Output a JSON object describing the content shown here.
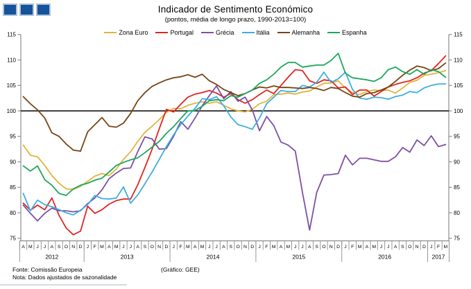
{
  "header": {
    "title": "Indicador de Sentimento Económico",
    "subtitle": "(pontos, média de longo prazo, 1990-2013=100)"
  },
  "footer": {
    "fonte": "Fonte: Comissão Europeia",
    "nota": "Nota: Dados ajustados de sazonalidade",
    "credit": "(Gráfico: GEE)"
  },
  "logo": {
    "squares": 3,
    "fill": "#15539B",
    "border": "#AEC4D8"
  },
  "chart_data": {
    "type": "line",
    "title": "Indicador de Sentimento Económico",
    "subtitle": "(pontos, média de longo prazo, 1990-2013=100)",
    "ylim": [
      75,
      115
    ],
    "ytick_step": 5,
    "baseline": 100,
    "grid": false,
    "legend_position": "top",
    "axis_color": "#8c8c8c",
    "baseline_color": "#000000",
    "x_months": [
      "A",
      "M",
      "J",
      "J",
      "A",
      "S",
      "O",
      "N",
      "D",
      "J",
      "F",
      "M",
      "A",
      "M",
      "J",
      "J",
      "A",
      "S",
      "O",
      "N",
      "D",
      "J",
      "F",
      "M",
      "A",
      "M",
      "J",
      "J",
      "A",
      "S",
      "O",
      "N",
      "D",
      "J",
      "F",
      "M",
      "A",
      "M",
      "J",
      "J",
      "A",
      "S",
      "O",
      "N",
      "D",
      "J",
      "F",
      "M",
      "A",
      "M",
      "J",
      "J",
      "A",
      "S",
      "O",
      "N",
      "D",
      "J",
      "F",
      "M"
    ],
    "years": [
      {
        "label": "2012",
        "months": 9
      },
      {
        "label": "2013",
        "months": 12
      },
      {
        "label": "2014",
        "months": 12
      },
      {
        "label": "2015",
        "months": 12
      },
      {
        "label": "2016",
        "months": 12
      },
      {
        "label": "2017",
        "months": 3
      }
    ],
    "series": [
      {
        "name": "Zona Euro",
        "color": "#E2B33C",
        "values": [
          93.3,
          91.3,
          91.0,
          89.3,
          87.3,
          85.8,
          84.7,
          84.6,
          85.2,
          86.2,
          87.2,
          87.7,
          87.3,
          88.6,
          90.5,
          92.0,
          94.0,
          95.8,
          97.0,
          98.3,
          99.7,
          100.5,
          100.4,
          101.1,
          101.5,
          101.8,
          101.5,
          101.8,
          101.1,
          100.4,
          100.0,
          99.8,
          100.3,
          101.4,
          101.9,
          103.2,
          103.3,
          103.5,
          103.3,
          103.7,
          103.9,
          104.7,
          105.4,
          105.5,
          105.9,
          104.5,
          103.6,
          103.2,
          103.8,
          104.1,
          104.0,
          104.1,
          103.5,
          104.5,
          105.6,
          106.0,
          107.0,
          107.2,
          107.5,
          107.9
        ]
      },
      {
        "name": "Portugal",
        "color": "#E0241E",
        "values": [
          81.9,
          80.5,
          81.5,
          80.6,
          82.9,
          79.5,
          77.0,
          75.7,
          76.4,
          81.3,
          79.9,
          80.6,
          81.7,
          82.4,
          82.7,
          82.7,
          85.5,
          88.9,
          92.5,
          96.5,
          100.3,
          99.8,
          101.3,
          102.7,
          103.3,
          103.6,
          104.0,
          103.5,
          102.7,
          103.4,
          102.2,
          101.5,
          102.2,
          103.2,
          104.1,
          103.4,
          105.0,
          106.6,
          108.1,
          107.9,
          105.9,
          105.4,
          106.1,
          105.9,
          104.5,
          104.7,
          103.2,
          104.1,
          104.1,
          102.9,
          103.8,
          104.7,
          105.2,
          105.6,
          105.9,
          106.5,
          107.4,
          107.9,
          109.3,
          110.8
        ]
      },
      {
        "name": "Grécia",
        "color": "#7C4FA4",
        "values": [
          81.5,
          79.9,
          78.4,
          79.9,
          80.9,
          80.4,
          80.4,
          80.2,
          80.4,
          81.8,
          82.9,
          84.5,
          86.7,
          87.8,
          88.7,
          88.8,
          92.0,
          94.9,
          94.5,
          92.5,
          92.6,
          95.0,
          97.9,
          96.4,
          98.6,
          101.0,
          103.0,
          104.9,
          102.4,
          103.8,
          101.9,
          102.7,
          100.2,
          96.1,
          98.9,
          97.1,
          93.9,
          93.3,
          92.1,
          84.0,
          76.6,
          84.0,
          87.4,
          87.5,
          87.7,
          91.3,
          89.4,
          90.7,
          90.7,
          90.4,
          90.1,
          90.1,
          91.0,
          92.8,
          91.9,
          94.3,
          93.2,
          95.1,
          93.0,
          93.4
        ]
      },
      {
        "name": "Itália",
        "color": "#3DADE2",
        "values": [
          83.8,
          80.4,
          82.5,
          81.6,
          81.2,
          80.6,
          80.0,
          79.6,
          80.5,
          81.6,
          83.4,
          82.8,
          82.7,
          82.9,
          85.1,
          81.9,
          83.5,
          85.7,
          88.0,
          90.5,
          93.0,
          95.3,
          97.3,
          99.0,
          100.5,
          102.4,
          102.2,
          102.8,
          101.0,
          98.8,
          97.3,
          96.9,
          96.4,
          98.6,
          101.4,
          102.7,
          104.0,
          103.8,
          103.8,
          105.0,
          104.7,
          105.6,
          107.6,
          105.6,
          106.3,
          107.6,
          104.2,
          102.5,
          102.3,
          102.7,
          102.6,
          102.3,
          102.8,
          103.1,
          103.8,
          103.6,
          104.5,
          105.0,
          105.3,
          105.3
        ]
      },
      {
        "name": "Alemanha",
        "color": "#744515",
        "values": [
          102.8,
          101.4,
          100.2,
          98.6,
          95.7,
          95.0,
          93.5,
          92.3,
          92.1,
          95.9,
          97.3,
          98.7,
          97.0,
          96.8,
          97.6,
          99.5,
          102.0,
          103.6,
          104.8,
          105.5,
          106.1,
          106.5,
          106.7,
          107.1,
          106.6,
          107.2,
          105.9,
          105.2,
          104.2,
          103.6,
          103.0,
          103.4,
          104.1,
          104.7,
          104.5,
          104.9,
          104.6,
          104.6,
          104.5,
          104.4,
          104.6,
          104.4,
          104.0,
          104.6,
          104.4,
          103.6,
          102.9,
          102.7,
          103.4,
          103.6,
          104.1,
          104.7,
          105.8,
          107.0,
          108.0,
          108.8,
          108.5,
          107.9,
          108.3,
          109.4
        ]
      },
      {
        "name": "Espanha",
        "color": "#1CA75A",
        "values": [
          89.2,
          88.2,
          89.2,
          86.5,
          85.4,
          83.8,
          83.4,
          84.7,
          85.4,
          85.8,
          86.4,
          86.8,
          88.0,
          89.3,
          89.9,
          90.4,
          90.8,
          91.8,
          92.9,
          94.0,
          95.6,
          96.9,
          98.5,
          100.0,
          100.1,
          100.9,
          102.0,
          102.2,
          102.0,
          103.0,
          102.7,
          103.4,
          104.1,
          105.4,
          106.1,
          107.2,
          108.6,
          109.5,
          109.5,
          108.6,
          108.8,
          109.0,
          109.0,
          109.9,
          111.3,
          107.4,
          106.5,
          106.3,
          106.1,
          105.8,
          106.5,
          108.1,
          108.6,
          107.7,
          107.2,
          108.1,
          107.2,
          108.1,
          107.7,
          106.6
        ]
      }
    ]
  }
}
